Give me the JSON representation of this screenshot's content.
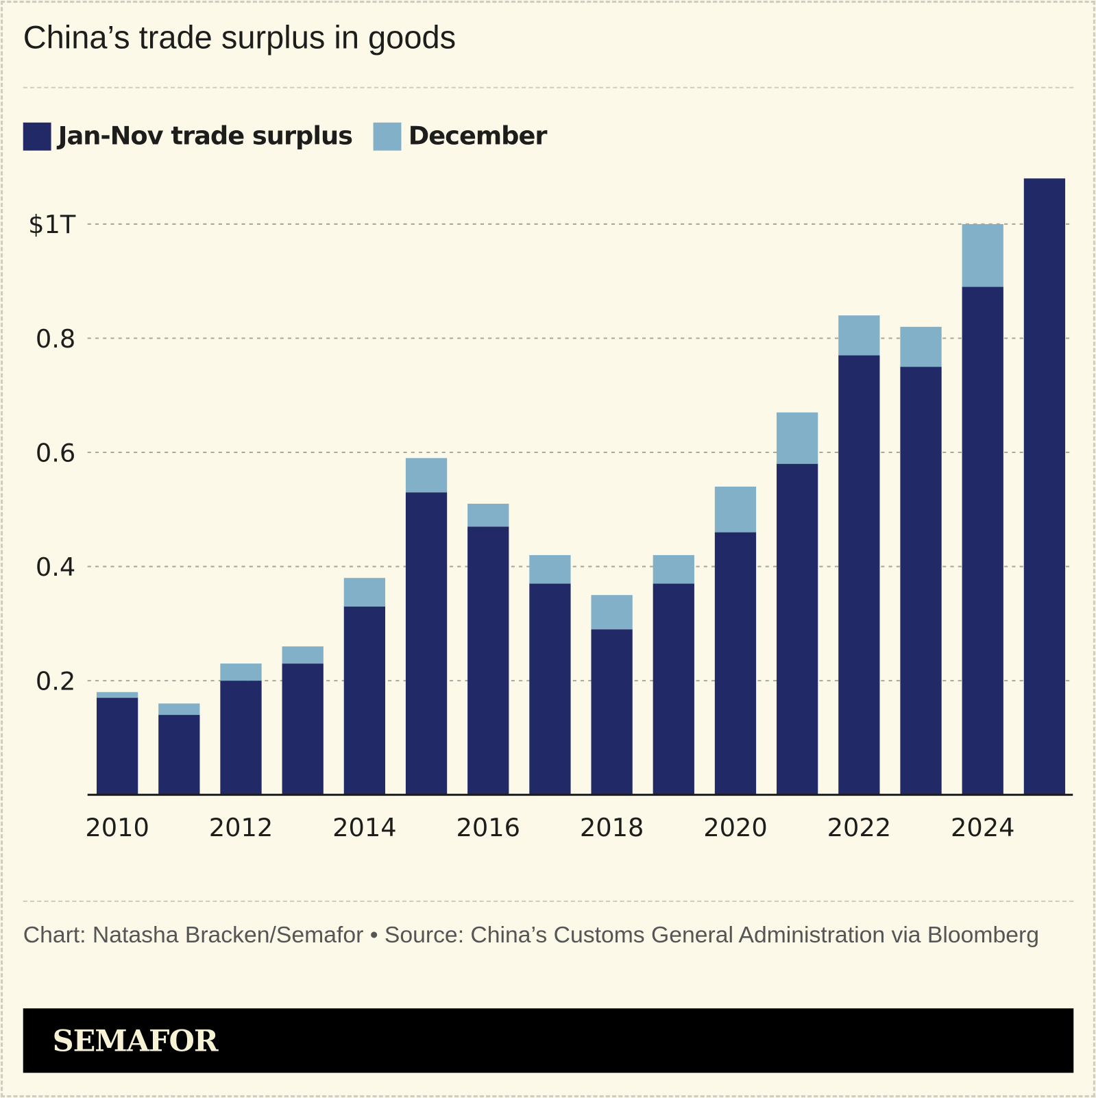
{
  "chart_data": {
    "type": "bar",
    "stacked": true,
    "title": "China’s trade surplus in goods",
    "categories": [
      "2010",
      "2011",
      "2012",
      "2013",
      "2014",
      "2015",
      "2016",
      "2017",
      "2018",
      "2019",
      "2020",
      "2021",
      "2022",
      "2023",
      "2024",
      "2025"
    ],
    "series": [
      {
        "name": "Jan-Nov trade surplus",
        "color": "#212a66",
        "values": [
          0.17,
          0.14,
          0.2,
          0.23,
          0.33,
          0.53,
          0.47,
          0.37,
          0.29,
          0.37,
          0.46,
          0.58,
          0.77,
          0.75,
          0.89,
          1.08
        ]
      },
      {
        "name": "December",
        "color": "#81b0c8",
        "values": [
          0.01,
          0.02,
          0.03,
          0.03,
          0.05,
          0.06,
          0.04,
          0.05,
          0.06,
          0.05,
          0.08,
          0.09,
          0.07,
          0.07,
          0.11,
          null
        ]
      }
    ],
    "yticks": [
      {
        "value": 0.2,
        "label": "0.2"
      },
      {
        "value": 0.4,
        "label": "0.4"
      },
      {
        "value": 0.6,
        "label": "0.6"
      },
      {
        "value": 0.8,
        "label": "0.8"
      },
      {
        "value": 1.0,
        "label": "$1T"
      }
    ],
    "xtick_labels": [
      "2010",
      "2012",
      "2014",
      "2016",
      "2018",
      "2020",
      "2022",
      "2024"
    ],
    "ylim": [
      0,
      1.1
    ],
    "grid": true,
    "legend": "top-left",
    "unit": "trillion USD"
  },
  "footer": {
    "credit": "Chart: Natasha Bracken/Semafor • Source: China’s Customs General Administration via Bloomberg",
    "brand": "SEMAFOR"
  }
}
